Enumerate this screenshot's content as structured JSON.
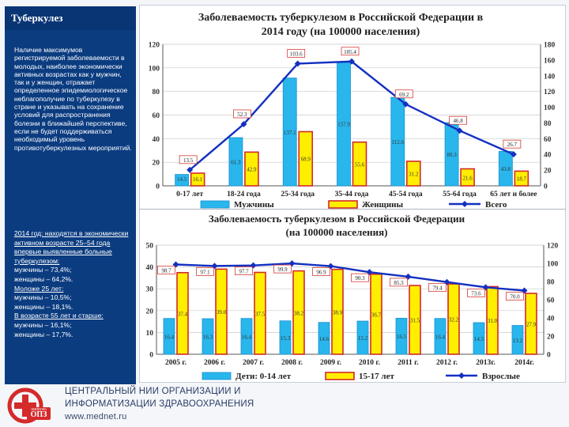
{
  "sidebar": {
    "title": "Туберкулез",
    "text1": "Наличие максимумов регистрируемой заболеваемости в молодых, наиболее экономически активных возрастах как у мужчин, так и у женщин, отражает определенное эпидемиологическое неблагополучие по туберкулезу в стране и указывать на сохранение условий для распространения болезни в ближайшей перспективе, если не будет поддерживаться необходимый уровень противотуберкулезных мероприятий.",
    "p2_intro": "2014 год: находятся в экономически активном возрасте 25–54 года впервые выявленные больные туберкулезом:",
    "p2_men": "мужчины – 73,4%;",
    "p2_women": "женщины – 64,2%.",
    "p3_title": "Моложе 25 лет:",
    "p3_men": "мужчины – 10,5%;",
    "p3_women": "женщины – 18,1%.",
    "p4_title": "В возрасте 55 лет и старше:",
    "p4_men": "мужчины – 16,1%;",
    "p4_women": "женщины – 17,7%."
  },
  "footer": {
    "logo_text": "ЦНИИОИЗ",
    "logo_badge": "ОПЗ",
    "line1": "ЦЕНТРАЛЬНЫЙ НИИ ОРГАНИЗАЦИИ И",
    "line2": "ИНФОРМАТИЗАЦИИ ЗДРАВООХРАНЕНИЯ",
    "url": "www.mednet.ru"
  },
  "colors": {
    "men": "#29b6ec",
    "women": "#ffee00",
    "total": "#1330c0",
    "label_box": "#d0201a",
    "sidebar_bg": "#0b3c80"
  },
  "chart_data": [
    {
      "type": "bar",
      "title_line1": "Заболеваемость туберкулезом в Российской Федерации в",
      "title_line2": "2014 году (на 100000 населения)",
      "categories": [
        "0-17 лет",
        "18-24 года",
        "25-34 года",
        "35-44 года",
        "45-54 года",
        "55-64 года",
        "65 лет и более"
      ],
      "series": [
        {
          "name": "Мужчины",
          "kind": "bar",
          "axis": "right",
          "values": [
            14.5,
            61.3,
            137.1,
            157.9,
            112.6,
            80.3,
            43.8
          ]
        },
        {
          "name": "Женщины",
          "kind": "bar",
          "axis": "right",
          "values": [
            16.1,
            42.9,
            68.9,
            55.6,
            31.2,
            21.6,
            18.7
          ]
        },
        {
          "name": "Всего",
          "kind": "line",
          "axis": "left",
          "values": [
            13.5,
            52.3,
            103.6,
            105.4,
            69.2,
            46.8,
            26.7
          ]
        }
      ],
      "left_axis": {
        "min": 0,
        "max": 120,
        "ticks": [
          0,
          20,
          40,
          60,
          80,
          100,
          120
        ]
      },
      "right_axis": {
        "min": 0,
        "max": 180,
        "ticks": [
          0,
          20,
          40,
          60,
          80,
          100,
          120,
          140,
          160,
          180
        ]
      },
      "labels": {
        "men": [
          "14.5",
          "61.3",
          "137.1",
          "157.9",
          "112.6",
          "80.3",
          "43.8"
        ],
        "women": [
          "16.1",
          "42.9",
          "68.9",
          "55.6",
          "31.2",
          "21.6",
          "18.7"
        ],
        "total": [
          "13.5",
          "52.3",
          "103.6",
          "105.4",
          "69.2",
          "46.8",
          "26.7"
        ]
      },
      "legend": [
        "Мужчины",
        "Женщины",
        "Всего"
      ],
      "legend_position": "bottom"
    },
    {
      "type": "bar",
      "title_line1": "Заболеваемость туберкулезом в Российской Федерации",
      "title_line2": "(на 100000 населения)",
      "categories": [
        "2005 г.",
        "2006 г.",
        "2007 г.",
        "2008 г.",
        "2009 г.",
        "2010 г.",
        "2011 г.",
        "2012 г.",
        "2013г.",
        "2014г."
      ],
      "series": [
        {
          "name": "Дети: 0-14 лет",
          "kind": "bar",
          "axis": "left",
          "values": [
            16.4,
            16.3,
            16.4,
            15.3,
            14.6,
            15.2,
            16.5,
            16.4,
            14.5,
            13.2
          ]
        },
        {
          "name": "15-17 лет",
          "kind": "bar",
          "axis": "left",
          "values": [
            37.4,
            39.0,
            37.5,
            38.2,
            38.9,
            36.7,
            31.5,
            32.2,
            31.0,
            27.9
          ]
        },
        {
          "name": "Взрослые",
          "kind": "line",
          "axis": "right",
          "values": [
            98.7,
            97.1,
            97.7,
            99.9,
            96.9,
            90.3,
            85.3,
            79.4,
            73.6,
            70.0
          ]
        }
      ],
      "left_axis": {
        "min": 0,
        "max": 50,
        "ticks": [
          0,
          10,
          20,
          30,
          40,
          50
        ]
      },
      "right_axis": {
        "min": 0,
        "max": 120,
        "ticks": [
          0,
          20,
          40,
          60,
          80,
          100,
          120
        ]
      },
      "labels": {
        "children": [
          "16.4",
          "16.3",
          "16.4",
          "15.3",
          "14.6",
          "15.2",
          "16.5",
          "16.4",
          "14.5",
          "13.2"
        ],
        "teens": [
          "37.4",
          "39.0",
          "37.5",
          "38.2",
          "38.9",
          "36.7",
          "31.5",
          "32.2",
          "31.0",
          "27.9"
        ],
        "adults": [
          "98.7",
          "97.1",
          "97.7",
          "99.9",
          "96.9",
          "90.3",
          "85.3",
          "79.4",
          "73.6",
          "70.0"
        ]
      },
      "legend": [
        "Дети: 0-14 лет",
        "15-17 лет",
        "Взрослые"
      ],
      "legend_position": "bottom"
    }
  ]
}
